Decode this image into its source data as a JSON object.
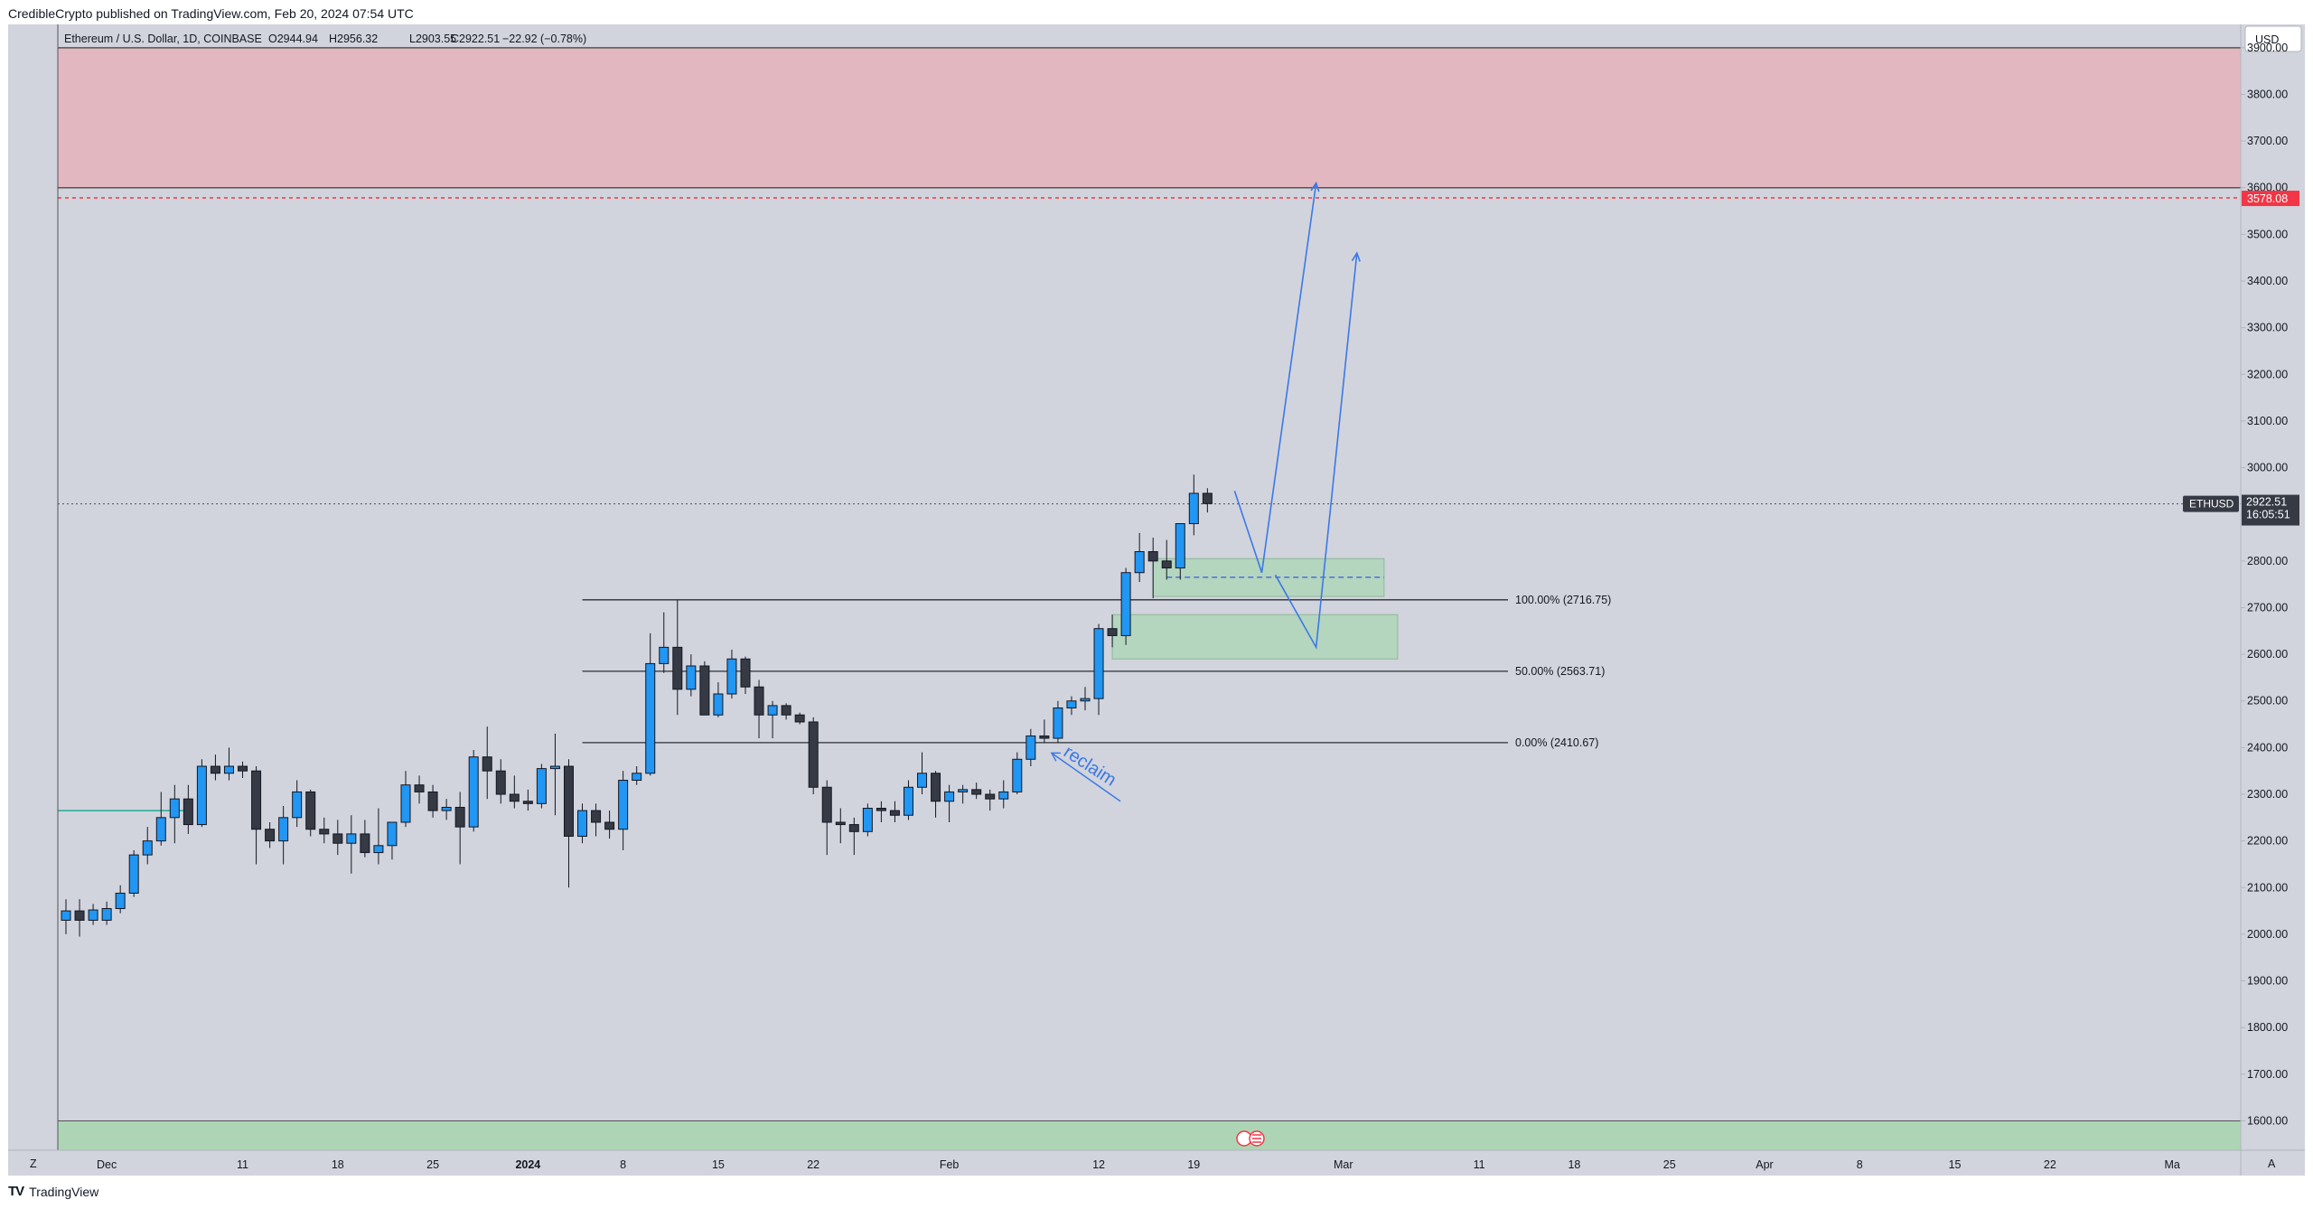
{
  "header": {
    "text": "CredibleCrypto published on TradingView.com, Feb 20, 2024 07:54 UTC"
  },
  "footer": {
    "logo_text": "TV",
    "brand": "TradingView"
  },
  "legend": {
    "symbol": "Ethereum / U.S. Dollar, 1D, COINBASE",
    "o": "O2944.94",
    "h": "H2956.32",
    "l": "L2903.55",
    "c": "C2922.51",
    "chg": "−22.92 (−0.78%)"
  },
  "currency_button": "USD",
  "corner_labels": {
    "left": "Z",
    "right": "A"
  },
  "price_badges": {
    "symbol": "ETHUSD",
    "last_price": "2922.51",
    "countdown": "16:05:51",
    "red_level": "3578.08"
  },
  "annotation_text": "reclaim",
  "colors": {
    "up_candle": "#2196f3",
    "down_candle": "#363a45",
    "resistance_zone": "#e8aeb6",
    "support_zone": "#a8d5b0",
    "arrow": "#3b78e7",
    "red_badge": "#f23645"
  },
  "chart_data": {
    "type": "candlestick",
    "title": "Ethereum / U.S. Dollar, 1D, COINBASE",
    "y_range": [
      1537,
      3950
    ],
    "y_ticks": [
      "1600.00",
      "1700.00",
      "1800.00",
      "1900.00",
      "2000.00",
      "2100.00",
      "2200.00",
      "2300.00",
      "2400.00",
      "2500.00",
      "2600.00",
      "2700.00",
      "2800.00",
      "2900.00",
      "3000.00",
      "3100.00",
      "3200.00",
      "3300.00",
      "3400.00",
      "3500.00",
      "3600.00",
      "3700.00",
      "3800.00",
      "3900.00"
    ],
    "x_ticks": [
      {
        "label": "Dec",
        "date": "2023-12-01"
      },
      {
        "label": "11",
        "date": "2023-12-11"
      },
      {
        "label": "18",
        "date": "2023-12-18"
      },
      {
        "label": "25",
        "date": "2023-12-25"
      },
      {
        "label": "2024",
        "date": "2024-01-01",
        "bold": true
      },
      {
        "label": "8",
        "date": "2024-01-08"
      },
      {
        "label": "15",
        "date": "2024-01-15"
      },
      {
        "label": "22",
        "date": "2024-01-22"
      },
      {
        "label": "Feb",
        "date": "2024-02-01"
      },
      {
        "label": "12",
        "date": "2024-02-12"
      },
      {
        "label": "19",
        "date": "2024-02-19"
      },
      {
        "label": "Mar",
        "date": "2024-03-01"
      },
      {
        "label": "11",
        "date": "2024-03-11"
      },
      {
        "label": "18",
        "date": "2024-03-18"
      },
      {
        "label": "25",
        "date": "2024-03-25"
      },
      {
        "label": "Apr",
        "date": "2024-04-01"
      },
      {
        "label": "8",
        "date": "2024-04-08"
      },
      {
        "label": "15",
        "date": "2024-04-15"
      },
      {
        "label": "22",
        "date": "2024-04-22"
      },
      {
        "label": "Ma",
        "date": "2024-05-01"
      }
    ],
    "candles": [
      {
        "date": "2023-11-28",
        "o": 2030,
        "h": 2075,
        "l": 2000,
        "c": 2050
      },
      {
        "date": "2023-11-29",
        "o": 2050,
        "h": 2075,
        "l": 1995,
        "c": 2030
      },
      {
        "date": "2023-11-30",
        "o": 2030,
        "h": 2065,
        "l": 2020,
        "c": 2052
      },
      {
        "date": "2023-12-01",
        "o": 2030,
        "h": 2070,
        "l": 2020,
        "c": 2055
      },
      {
        "date": "2023-12-02",
        "o": 2055,
        "h": 2105,
        "l": 2045,
        "c": 2088
      },
      {
        "date": "2023-12-03",
        "o": 2088,
        "h": 2180,
        "l": 2080,
        "c": 2170
      },
      {
        "date": "2023-12-04",
        "o": 2170,
        "h": 2230,
        "l": 2150,
        "c": 2200
      },
      {
        "date": "2023-12-05",
        "o": 2200,
        "h": 2305,
        "l": 2190,
        "c": 2250
      },
      {
        "date": "2023-12-06",
        "o": 2250,
        "h": 2320,
        "l": 2195,
        "c": 2290
      },
      {
        "date": "2023-12-07",
        "o": 2290,
        "h": 2320,
        "l": 2215,
        "c": 2235
      },
      {
        "date": "2023-12-08",
        "o": 2235,
        "h": 2375,
        "l": 2230,
        "c": 2360
      },
      {
        "date": "2023-12-09",
        "o": 2360,
        "h": 2385,
        "l": 2330,
        "c": 2345
      },
      {
        "date": "2023-12-10",
        "o": 2345,
        "h": 2400,
        "l": 2330,
        "c": 2360
      },
      {
        "date": "2023-12-11",
        "o": 2360,
        "h": 2370,
        "l": 2335,
        "c": 2350
      },
      {
        "date": "2023-12-12",
        "o": 2350,
        "h": 2360,
        "l": 2150,
        "c": 2225
      },
      {
        "date": "2023-12-13",
        "o": 2225,
        "h": 2240,
        "l": 2185,
        "c": 2200
      },
      {
        "date": "2023-12-14",
        "o": 2200,
        "h": 2275,
        "l": 2150,
        "c": 2250
      },
      {
        "date": "2023-12-15",
        "o": 2250,
        "h": 2330,
        "l": 2230,
        "c": 2305
      },
      {
        "date": "2023-12-16",
        "o": 2305,
        "h": 2310,
        "l": 2210,
        "c": 2225
      },
      {
        "date": "2023-12-17",
        "o": 2225,
        "h": 2250,
        "l": 2195,
        "c": 2215
      },
      {
        "date": "2023-12-18",
        "o": 2215,
        "h": 2245,
        "l": 2170,
        "c": 2195
      },
      {
        "date": "2023-12-19",
        "o": 2195,
        "h": 2255,
        "l": 2130,
        "c": 2215
      },
      {
        "date": "2023-12-20",
        "o": 2215,
        "h": 2245,
        "l": 2165,
        "c": 2175
      },
      {
        "date": "2023-12-21",
        "o": 2175,
        "h": 2270,
        "l": 2150,
        "c": 2190
      },
      {
        "date": "2023-12-22",
        "o": 2190,
        "h": 2235,
        "l": 2160,
        "c": 2240
      },
      {
        "date": "2023-12-23",
        "o": 2240,
        "h": 2350,
        "l": 2230,
        "c": 2320
      },
      {
        "date": "2023-12-24",
        "o": 2320,
        "h": 2340,
        "l": 2280,
        "c": 2305
      },
      {
        "date": "2023-12-25",
        "o": 2305,
        "h": 2320,
        "l": 2250,
        "c": 2265
      },
      {
        "date": "2023-12-26",
        "o": 2265,
        "h": 2290,
        "l": 2245,
        "c": 2272
      },
      {
        "date": "2023-12-27",
        "o": 2272,
        "h": 2305,
        "l": 2150,
        "c": 2230
      },
      {
        "date": "2023-12-28",
        "o": 2230,
        "h": 2395,
        "l": 2220,
        "c": 2380
      },
      {
        "date": "2023-12-29",
        "o": 2380,
        "h": 2445,
        "l": 2290,
        "c": 2350
      },
      {
        "date": "2023-12-30",
        "o": 2350,
        "h": 2375,
        "l": 2280,
        "c": 2300
      },
      {
        "date": "2023-12-31",
        "o": 2300,
        "h": 2340,
        "l": 2270,
        "c": 2285
      },
      {
        "date": "2024-01-01",
        "o": 2285,
        "h": 2310,
        "l": 2265,
        "c": 2280
      },
      {
        "date": "2024-01-02",
        "o": 2280,
        "h": 2365,
        "l": 2270,
        "c": 2355
      },
      {
        "date": "2024-01-03",
        "o": 2355,
        "h": 2430,
        "l": 2255,
        "c": 2360
      },
      {
        "date": "2024-01-04",
        "o": 2360,
        "h": 2375,
        "l": 2100,
        "c": 2210
      },
      {
        "date": "2024-01-05",
        "o": 2210,
        "h": 2280,
        "l": 2195,
        "c": 2265
      },
      {
        "date": "2024-01-06",
        "o": 2265,
        "h": 2280,
        "l": 2210,
        "c": 2240
      },
      {
        "date": "2024-01-07",
        "o": 2240,
        "h": 2265,
        "l": 2205,
        "c": 2225
      },
      {
        "date": "2024-01-08",
        "o": 2225,
        "h": 2350,
        "l": 2180,
        "c": 2330
      },
      {
        "date": "2024-01-09",
        "o": 2330,
        "h": 2360,
        "l": 2320,
        "c": 2345
      },
      {
        "date": "2024-01-10",
        "o": 2345,
        "h": 2645,
        "l": 2340,
        "c": 2580
      },
      {
        "date": "2024-01-11",
        "o": 2580,
        "h": 2690,
        "l": 2560,
        "c": 2615
      },
      {
        "date": "2024-01-12",
        "o": 2615,
        "h": 2717,
        "l": 2470,
        "c": 2525
      },
      {
        "date": "2024-01-13",
        "o": 2525,
        "h": 2600,
        "l": 2510,
        "c": 2575
      },
      {
        "date": "2024-01-14",
        "o": 2575,
        "h": 2585,
        "l": 2470,
        "c": 2470
      },
      {
        "date": "2024-01-15",
        "o": 2470,
        "h": 2540,
        "l": 2465,
        "c": 2515
      },
      {
        "date": "2024-01-16",
        "o": 2515,
        "h": 2610,
        "l": 2505,
        "c": 2590
      },
      {
        "date": "2024-01-17",
        "o": 2590,
        "h": 2595,
        "l": 2515,
        "c": 2530
      },
      {
        "date": "2024-01-18",
        "o": 2530,
        "h": 2545,
        "l": 2420,
        "c": 2470
      },
      {
        "date": "2024-01-19",
        "o": 2470,
        "h": 2500,
        "l": 2420,
        "c": 2490
      },
      {
        "date": "2024-01-20",
        "o": 2490,
        "h": 2495,
        "l": 2460,
        "c": 2470
      },
      {
        "date": "2024-01-21",
        "o": 2470,
        "h": 2475,
        "l": 2450,
        "c": 2455
      },
      {
        "date": "2024-01-22",
        "o": 2455,
        "h": 2465,
        "l": 2300,
        "c": 2315
      },
      {
        "date": "2024-01-23",
        "o": 2315,
        "h": 2330,
        "l": 2170,
        "c": 2240
      },
      {
        "date": "2024-01-24",
        "o": 2240,
        "h": 2270,
        "l": 2195,
        "c": 2235
      },
      {
        "date": "2024-01-25",
        "o": 2235,
        "h": 2250,
        "l": 2170,
        "c": 2220
      },
      {
        "date": "2024-01-26",
        "o": 2220,
        "h": 2280,
        "l": 2210,
        "c": 2270
      },
      {
        "date": "2024-01-27",
        "o": 2270,
        "h": 2285,
        "l": 2240,
        "c": 2265
      },
      {
        "date": "2024-01-28",
        "o": 2265,
        "h": 2285,
        "l": 2240,
        "c": 2255
      },
      {
        "date": "2024-01-29",
        "o": 2255,
        "h": 2330,
        "l": 2245,
        "c": 2315
      },
      {
        "date": "2024-01-30",
        "o": 2315,
        "h": 2390,
        "l": 2300,
        "c": 2345
      },
      {
        "date": "2024-01-31",
        "o": 2345,
        "h": 2350,
        "l": 2250,
        "c": 2285
      },
      {
        "date": "2024-02-01",
        "o": 2285,
        "h": 2320,
        "l": 2240,
        "c": 2305
      },
      {
        "date": "2024-02-02",
        "o": 2305,
        "h": 2320,
        "l": 2280,
        "c": 2310
      },
      {
        "date": "2024-02-03",
        "o": 2310,
        "h": 2325,
        "l": 2290,
        "c": 2300
      },
      {
        "date": "2024-02-04",
        "o": 2300,
        "h": 2310,
        "l": 2265,
        "c": 2290
      },
      {
        "date": "2024-02-05",
        "o": 2290,
        "h": 2330,
        "l": 2270,
        "c": 2305
      },
      {
        "date": "2024-02-06",
        "o": 2305,
        "h": 2390,
        "l": 2300,
        "c": 2375
      },
      {
        "date": "2024-02-07",
        "o": 2375,
        "h": 2440,
        "l": 2360,
        "c": 2425
      },
      {
        "date": "2024-02-08",
        "o": 2425,
        "h": 2460,
        "l": 2410,
        "c": 2420
      },
      {
        "date": "2024-02-09",
        "o": 2420,
        "h": 2500,
        "l": 2410,
        "c": 2485
      },
      {
        "date": "2024-02-10",
        "o": 2485,
        "h": 2510,
        "l": 2470,
        "c": 2500
      },
      {
        "date": "2024-02-11",
        "o": 2500,
        "h": 2530,
        "l": 2480,
        "c": 2505
      },
      {
        "date": "2024-02-12",
        "o": 2505,
        "h": 2665,
        "l": 2470,
        "c": 2655
      },
      {
        "date": "2024-02-13",
        "o": 2655,
        "h": 2685,
        "l": 2615,
        "c": 2640
      },
      {
        "date": "2024-02-14",
        "o": 2640,
        "h": 2785,
        "l": 2620,
        "c": 2775
      },
      {
        "date": "2024-02-15",
        "o": 2775,
        "h": 2860,
        "l": 2755,
        "c": 2820
      },
      {
        "date": "2024-02-16",
        "o": 2820,
        "h": 2850,
        "l": 2720,
        "c": 2800
      },
      {
        "date": "2024-02-17",
        "o": 2800,
        "h": 2845,
        "l": 2760,
        "c": 2785
      },
      {
        "date": "2024-02-18",
        "o": 2785,
        "h": 2880,
        "l": 2760,
        "c": 2880
      },
      {
        "date": "2024-02-19",
        "o": 2880,
        "h": 2985,
        "l": 2855,
        "c": 2945
      },
      {
        "date": "2024-02-20",
        "o": 2945,
        "h": 2956,
        "l": 2904,
        "c": 2923
      }
    ],
    "zones": [
      {
        "label": "resistance",
        "from": 3600,
        "to": 3900
      },
      {
        "label": "support",
        "from": 1537,
        "to": 1600
      },
      {
        "label": "demand-1",
        "from": 2724,
        "to": 2805,
        "from_date": "2024-02-16",
        "to_date": "2024-03-04"
      },
      {
        "label": "demand-2",
        "from": 2590,
        "to": 2685,
        "from_date": "2024-02-13",
        "to_date": "2024-03-05"
      }
    ],
    "fib_levels": [
      {
        "label": "100.00% (2716.75)",
        "value": 2716.75,
        "from_date": "2024-01-05"
      },
      {
        "label": "50.00% (2563.71)",
        "value": 2563.71,
        "from_date": "2024-01-05"
      },
      {
        "label": "0.00% (2410.67)",
        "value": 2410.67,
        "from_date": "2024-01-05"
      }
    ],
    "reference_levels": [
      {
        "value": 2922.51,
        "style": "dotted"
      },
      {
        "value": 3578.08,
        "style": "dashed-red"
      },
      {
        "value": 2765,
        "style": "dashed-blue",
        "from_date": "2024-02-17",
        "to_date": "2024-03-04"
      },
      {
        "value": 2265,
        "style": "teal",
        "from_date": "2023-11-28",
        "to_date": "2023-12-03"
      }
    ],
    "projection_paths": [
      [
        {
          "date": "2024-02-22",
          "y": 2950
        },
        {
          "date": "2024-02-24",
          "y": 2775
        },
        {
          "date": "2024-02-28",
          "y": 3610
        }
      ],
      [
        {
          "date": "2024-02-25",
          "y": 2770
        },
        {
          "date": "2024-02-28",
          "y": 2615
        },
        {
          "date": "2024-03-02",
          "y": 3460
        }
      ]
    ],
    "reclaim_arrow": [
      {
        "date": "2024-02-12",
        "y": 2285
      },
      {
        "date": "2024-02-08",
        "y": 2400
      }
    ]
  }
}
